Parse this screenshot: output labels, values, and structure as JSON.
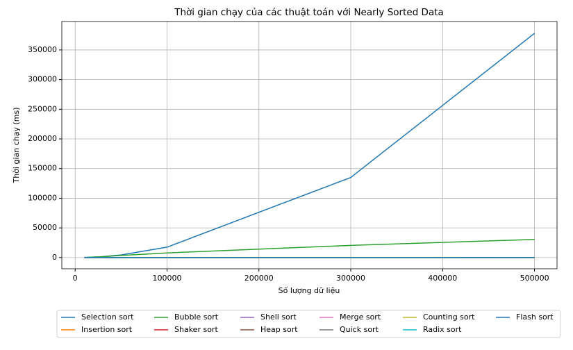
{
  "chart_data": {
    "type": "line",
    "title": "Thời gian chạy của các thuật toán với Nearly Sorted Data",
    "x_label": "Số lượng dữ liệu",
    "y_label": "Thời gian chạy (ms)",
    "x": [
      10000,
      30000,
      50000,
      100000,
      300000,
      500000
    ],
    "series": [
      {
        "name": "Selection sort",
        "color": "#1f77b4",
        "values": [
          175,
          1600,
          4400,
          17500,
          135000,
          378000
        ]
      },
      {
        "name": "Insertion sort",
        "color": "#ff7f0e",
        "values": [
          0,
          0,
          0,
          1,
          2,
          4
        ]
      },
      {
        "name": "Bubble sort",
        "color": "#2ca02c",
        "values": [
          100,
          1500,
          3500,
          7800,
          20500,
          30500
        ]
      },
      {
        "name": "Shaker sort",
        "color": "#d62728",
        "values": [
          0,
          0,
          0,
          1,
          2,
          4
        ]
      },
      {
        "name": "Shell sort",
        "color": "#9467bd",
        "values": [
          1,
          3,
          5,
          10,
          40,
          70
        ]
      },
      {
        "name": "Heap sort",
        "color": "#8c564b",
        "values": [
          2,
          7,
          12,
          25,
          85,
          150
        ]
      },
      {
        "name": "Merge sort",
        "color": "#e377c2",
        "values": [
          2,
          6,
          10,
          22,
          70,
          120
        ]
      },
      {
        "name": "Quick sort",
        "color": "#7f7f7f",
        "values": [
          0,
          2,
          3,
          6,
          20,
          35
        ]
      },
      {
        "name": "Counting sort",
        "color": "#bcbd22",
        "values": [
          0,
          0,
          1,
          1,
          3,
          5
        ]
      },
      {
        "name": "Radix sort",
        "color": "#17becf",
        "values": [
          1,
          3,
          5,
          10,
          30,
          50
        ]
      },
      {
        "name": "Flash sort",
        "color": "#1f77b4",
        "values": [
          0,
          1,
          2,
          4,
          12,
          20
        ]
      }
    ],
    "xlim": [
      -14500,
      524500
    ],
    "ylim": [
      -18900,
      397900
    ],
    "xticks": [
      0,
      100000,
      200000,
      300000,
      400000,
      500000
    ],
    "yticks": [
      0,
      50000,
      100000,
      150000,
      200000,
      250000,
      300000,
      350000
    ],
    "grid": true,
    "legend": "bottom"
  }
}
